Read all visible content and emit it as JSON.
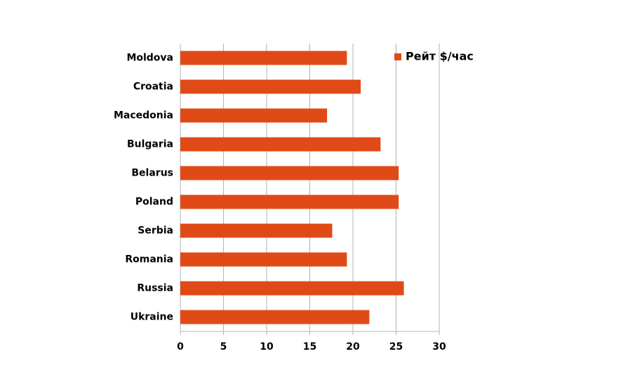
{
  "chart_data": {
    "type": "bar",
    "orientation": "horizontal",
    "categories": [
      "Moldova",
      "Croatia",
      "Macedonia",
      "Bulgaria",
      "Belarus",
      "Poland",
      "Serbia",
      "Romania",
      "Russia",
      "Ukraine"
    ],
    "series": [
      {
        "name": "Рейт $/час",
        "color": "#e04a17",
        "values": [
          19.3,
          20.9,
          17.0,
          23.2,
          25.3,
          25.3,
          17.6,
          19.3,
          25.9,
          21.9
        ]
      }
    ],
    "xlim": [
      0,
      30
    ],
    "xticks": [
      0,
      5,
      10,
      15,
      20,
      25,
      30
    ],
    "grid": true,
    "legend": "top-right"
  }
}
